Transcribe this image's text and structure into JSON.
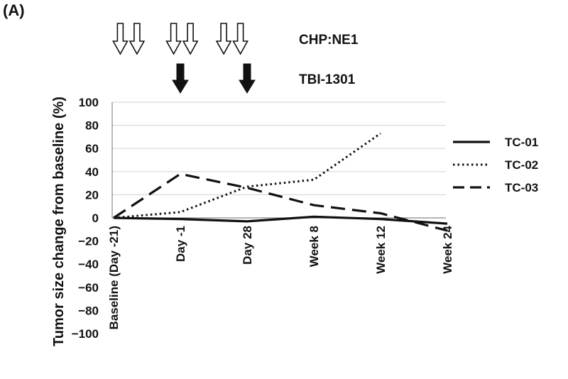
{
  "panel_label": "(A)",
  "chart_data": {
    "type": "line",
    "ylabel": "Tumor size change from baseline (%)",
    "xlabel": "",
    "ylim": [
      -100,
      100
    ],
    "yticks": [
      100,
      80,
      60,
      40,
      20,
      0,
      -20,
      -40,
      -60,
      -80,
      -100
    ],
    "ytick_labels": [
      "100",
      "80",
      "60",
      "40",
      "20",
      "0",
      "−20",
      "−40",
      "−60",
      "−80",
      "−100"
    ],
    "grid": true,
    "legend_position": "right",
    "categories": [
      "Baseline (Day -21)",
      "Day -1",
      "Day 28",
      "Week 8",
      "Week 12",
      "Week 24"
    ],
    "series": [
      {
        "name": "TC-01",
        "style": "solid",
        "values": [
          0,
          -1,
          -3,
          1,
          -1,
          -5
        ]
      },
      {
        "name": "TC-02",
        "style": "dotted",
        "values": [
          0,
          5,
          27,
          33,
          73,
          null
        ]
      },
      {
        "name": "TC-03",
        "style": "dashed",
        "values": [
          0,
          38,
          26,
          11,
          4,
          -11
        ]
      }
    ],
    "annotations": [
      {
        "label": "CHP:NE1",
        "arrow_style": "hollow",
        "arrow_positions": [
          0.2,
          0.7,
          1.8,
          2.3,
          3.3,
          3.8
        ]
      },
      {
        "label": "TBI-1301",
        "arrow_style": "filled",
        "arrow_positions": [
          2.0,
          4.0
        ]
      }
    ],
    "colors": {
      "line": "#111111",
      "grid": "#d9d9d9",
      "axis": "#888888"
    }
  }
}
